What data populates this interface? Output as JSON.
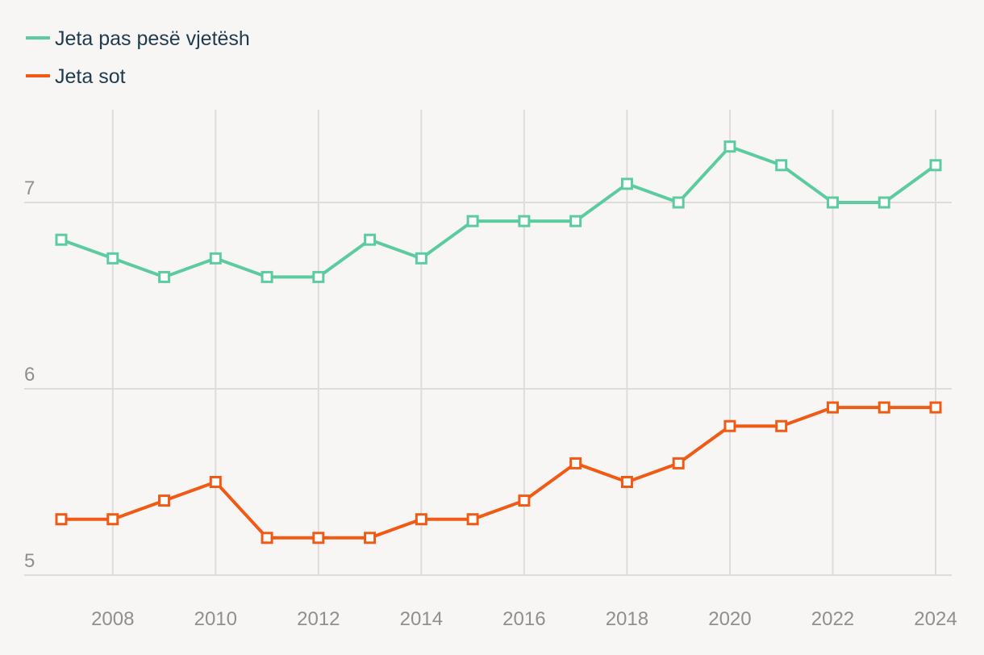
{
  "chart_data": {
    "type": "line",
    "title": "",
    "xlabel": "",
    "ylabel": "",
    "x": [
      2007,
      2008,
      2009,
      2010,
      2011,
      2012,
      2013,
      2014,
      2015,
      2016,
      2017,
      2018,
      2019,
      2020,
      2021,
      2022,
      2023,
      2024
    ],
    "x_ticks": [
      "2008",
      "2010",
      "2012",
      "2014",
      "2016",
      "2018",
      "2020",
      "2022",
      "2024"
    ],
    "y_ticks": [
      "5",
      "6",
      "7"
    ],
    "ylim": [
      5,
      7.5
    ],
    "grid": true,
    "legend_position": "top-left",
    "series": [
      {
        "name": "Jeta pas pesë vjetësh",
        "color": "#5ccca0",
        "values": [
          6.8,
          6.7,
          6.6,
          6.7,
          6.6,
          6.6,
          6.8,
          6.7,
          6.9,
          6.9,
          6.9,
          7.1,
          7.0,
          7.3,
          7.2,
          7.0,
          7.0,
          7.2
        ]
      },
      {
        "name": "Jeta sot",
        "color": "#f05a14",
        "values": [
          5.3,
          5.3,
          5.4,
          5.5,
          5.2,
          5.2,
          5.2,
          5.3,
          5.3,
          5.4,
          5.6,
          5.5,
          5.6,
          5.8,
          5.8,
          5.9,
          5.9,
          5.9
        ]
      }
    ]
  }
}
